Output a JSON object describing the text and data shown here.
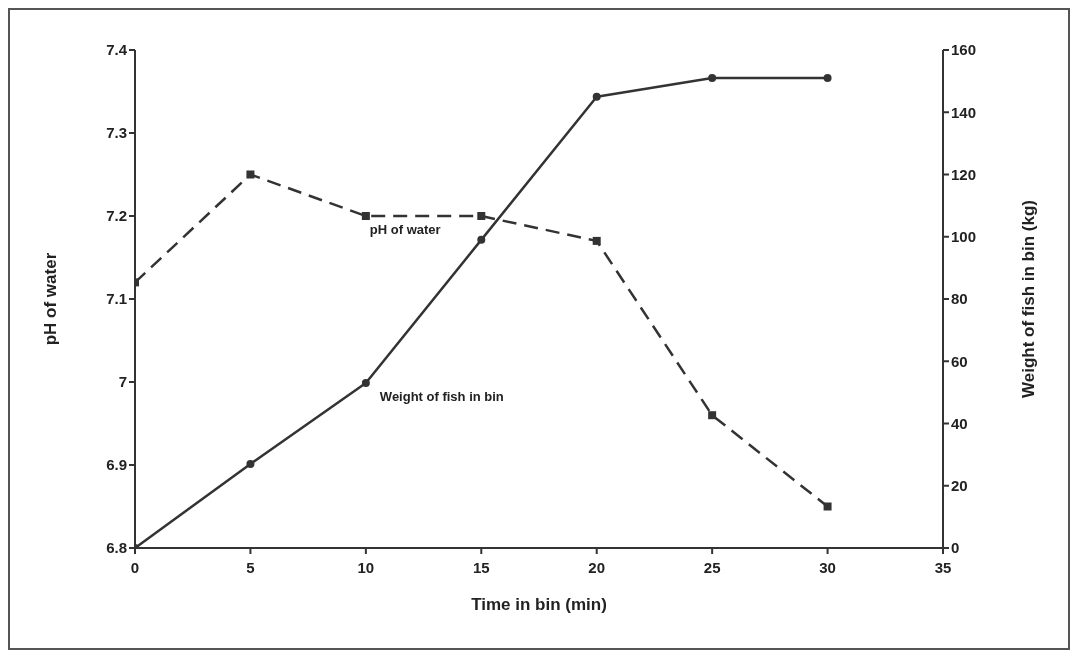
{
  "chart_data": {
    "type": "line",
    "xlabel": "Time in bin (min)",
    "ylabel": "pH of water",
    "y2label": "Weight of fish in bin (kg)",
    "x": [
      0,
      5,
      10,
      15,
      20,
      25,
      30
    ],
    "xlim": [
      0,
      35
    ],
    "xticks": [
      0,
      5,
      10,
      15,
      20,
      25,
      30,
      35
    ],
    "ylim": [
      6.8,
      7.4
    ],
    "yticks": [
      6.8,
      6.9,
      7,
      7.1,
      7.2,
      7.3,
      7.4
    ],
    "y2lim": [
      0,
      160
    ],
    "y2ticks": [
      0,
      20,
      40,
      60,
      80,
      100,
      120,
      140,
      160
    ],
    "series": [
      {
        "name": "pH of water",
        "color": "#333333",
        "marker": "square",
        "line_style": "dashed",
        "values": [
          7.12,
          7.25,
          7.2,
          7.2,
          7.17,
          6.96,
          6.85
        ]
      },
      {
        "name": "Weight of fish in bin",
        "color": "#333333",
        "marker": "circle",
        "line_style": "solid",
        "axis": "y2",
        "values": [
          0,
          27,
          53,
          99,
          145,
          151,
          151
        ]
      }
    ],
    "grid": false,
    "legend": false
  }
}
